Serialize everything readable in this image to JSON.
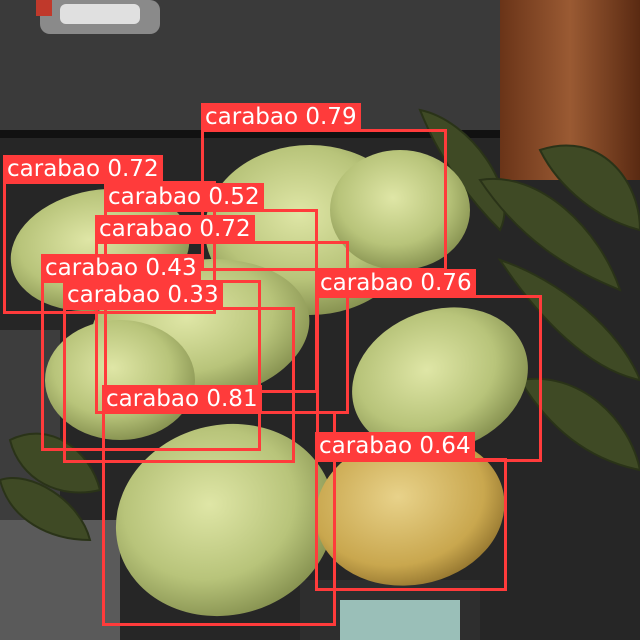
{
  "image": {
    "description_colors": {
      "box": "#ff3b3b",
      "label_text": "#ffffff"
    }
  },
  "detections": [
    {
      "label": "carabao",
      "score": "0.79"
    },
    {
      "label": "carabao",
      "score": "0.72"
    },
    {
      "label": "carabao",
      "score": "0.52"
    },
    {
      "label": "carabao",
      "score": "0.72"
    },
    {
      "label": "carabao",
      "score": "0.43"
    },
    {
      "label": "carabao",
      "score": "0.33"
    },
    {
      "label": "carabao",
      "score": "0.76"
    },
    {
      "label": "carabao",
      "score": "0.81"
    },
    {
      "label": "carabao",
      "score": "0.64"
    }
  ]
}
